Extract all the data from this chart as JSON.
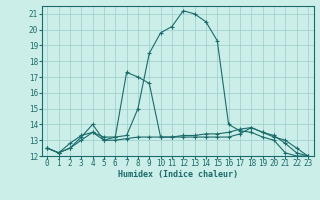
{
  "title": "",
  "xlabel": "Humidex (Indice chaleur)",
  "bg_color": "#cceee8",
  "grid_color": "#99cccc",
  "line_color": "#1a6b6b",
  "xlim": [
    -0.5,
    23.5
  ],
  "ylim": [
    12,
    21.5
  ],
  "yticks": [
    12,
    13,
    14,
    15,
    16,
    17,
    18,
    19,
    20,
    21
  ],
  "xticks": [
    0,
    1,
    2,
    3,
    4,
    5,
    6,
    7,
    8,
    9,
    10,
    11,
    12,
    13,
    14,
    15,
    16,
    17,
    18,
    19,
    20,
    21,
    22,
    23
  ],
  "series1": [
    12.5,
    12.2,
    12.5,
    13.0,
    13.5,
    13.2,
    13.2,
    13.3,
    15.0,
    18.5,
    19.8,
    20.2,
    21.2,
    21.0,
    20.5,
    19.3,
    14.0,
    13.6,
    13.5,
    13.2,
    13.0,
    12.2,
    12.0,
    12.0
  ],
  "series2": [
    12.5,
    12.2,
    12.5,
    13.2,
    14.0,
    13.0,
    13.2,
    17.3,
    17.0,
    16.6,
    13.2,
    13.2,
    13.3,
    13.3,
    13.4,
    13.4,
    13.5,
    13.7,
    13.8,
    13.5,
    13.2,
    13.0,
    12.5,
    12.0
  ],
  "series3": [
    12.5,
    12.2,
    12.8,
    13.3,
    13.5,
    13.0,
    13.0,
    13.1,
    13.2,
    13.2,
    13.2,
    13.2,
    13.2,
    13.2,
    13.2,
    13.2,
    13.2,
    13.4,
    13.8,
    13.5,
    13.3,
    12.8,
    12.2,
    12.0
  ],
  "xlabel_fontsize": 6,
  "tick_fontsize": 5.5
}
